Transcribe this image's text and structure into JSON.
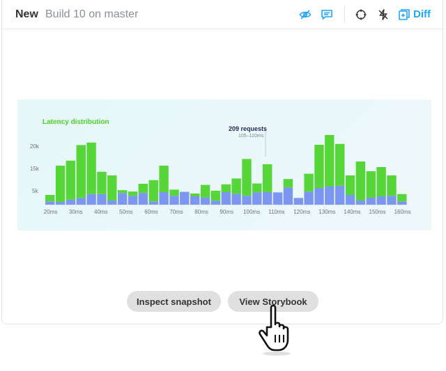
{
  "header": {
    "status": "New",
    "build_label": "Build 10 on master",
    "diff_label": "Diff",
    "icons": [
      "eye-off-icon",
      "comment-icon",
      "crosshair-icon",
      "lightning-off-icon",
      "diff-icon"
    ],
    "accent_color": "#1ea7fd"
  },
  "chart_data": {
    "type": "bar",
    "title": "Latency distribution",
    "tooltip": {
      "value": "209 requests",
      "range": "105–110ms"
    },
    "y_ticks": [
      "20k",
      "15k",
      "5k"
    ],
    "x_tick_labels": [
      "20ms",
      "30ms",
      "40ms",
      "50ms",
      "60ms",
      "70ms",
      "80ms",
      "90ms",
      "100ms",
      "110ms",
      "120ms",
      "130ms",
      "140ms",
      "150ms",
      "160ms"
    ],
    "ylim": [
      0,
      25000
    ],
    "series": [
      {
        "values": [
          1200,
          1000,
          1800,
          2400,
          3800,
          3800,
          1500,
          4200,
          3200,
          4200,
          1200,
          4500,
          3200,
          4600,
          3000,
          2600,
          1400,
          4500,
          3900,
          3200,
          4400,
          4500,
          4400,
          6200,
          2400,
          4700,
          6000,
          6500,
          6800,
          3500,
          1500,
          2500,
          3000,
          3200,
          1200
        ]
      },
      {
        "values": [
          2300,
          13000,
          14000,
          19000,
          18500,
          8000,
          9000,
          1000,
          1500,
          3300,
          7600,
          9500,
          2200,
          0,
          1000,
          4500,
          3600,
          2800,
          5500,
          13200,
          3200,
          10000,
          0,
          3000,
          0,
          6400,
          15500,
          18500,
          15000,
          7000,
          14000,
          9500,
          10500,
          7300,
          2600
        ]
      }
    ],
    "colors": {
      "lower": "#7b97f0",
      "upper": "#57d63a"
    }
  },
  "actions": {
    "inspect_label": "Inspect snapshot",
    "storybook_label": "View Storybook"
  }
}
